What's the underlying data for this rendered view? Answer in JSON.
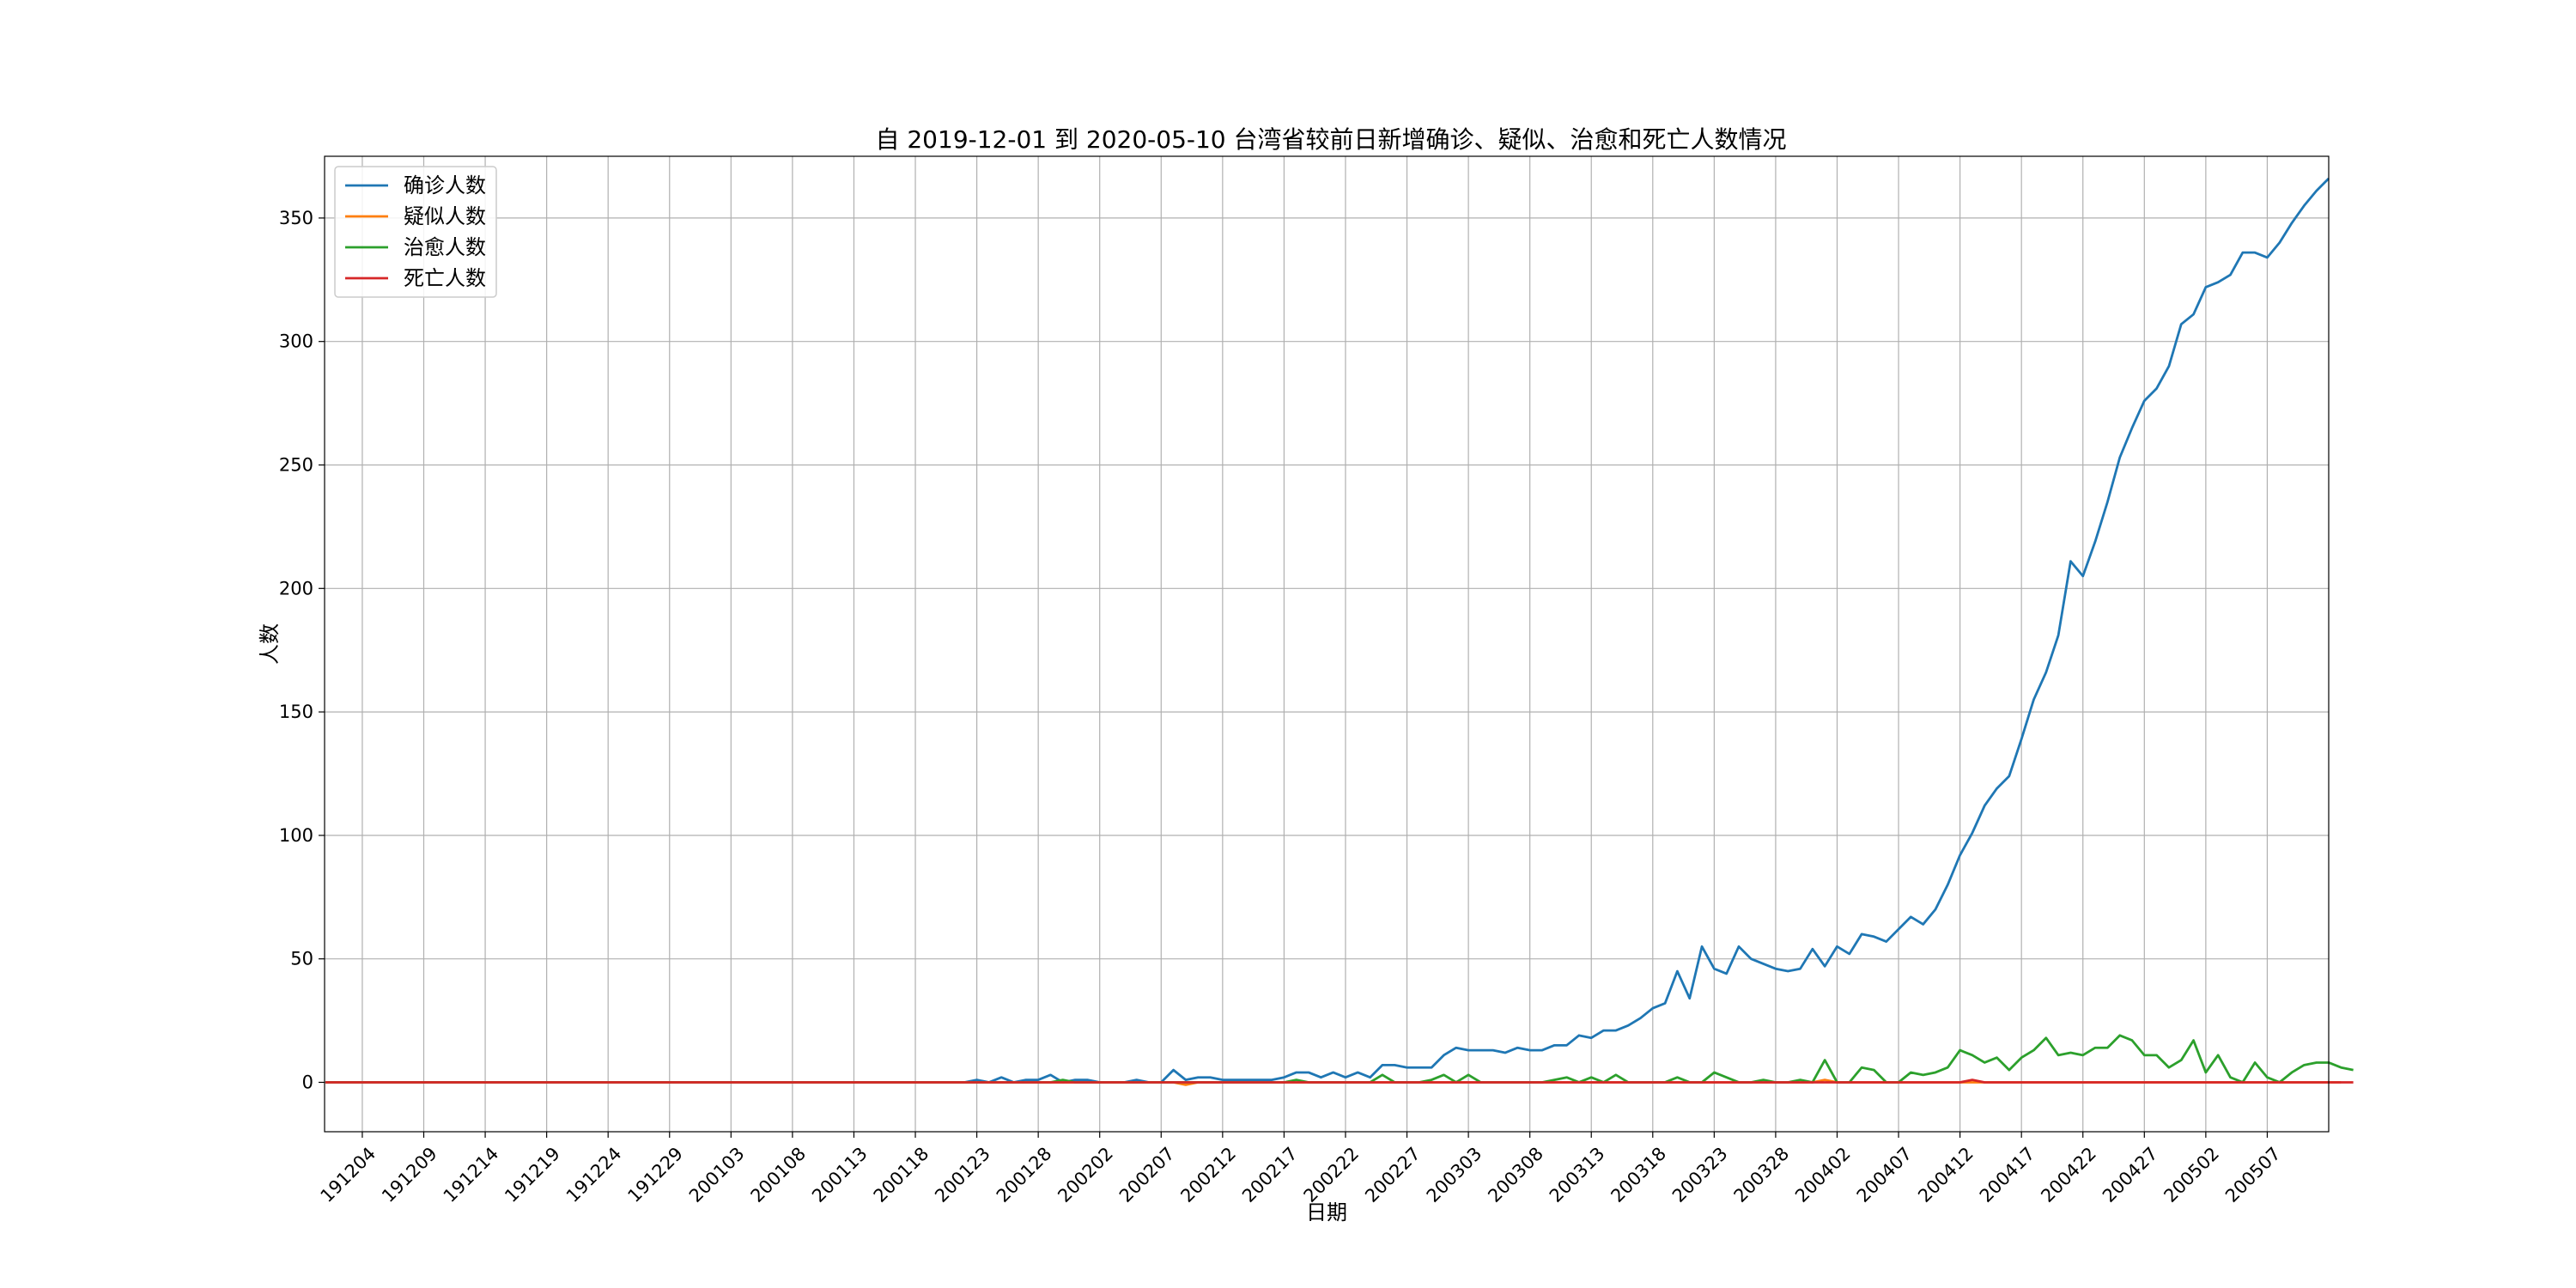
{
  "chart_data": {
    "type": "line",
    "title": "自 2019-12-01 到 2020-05-10 台湾省较前日新增确诊、疑似、治愈和死亡人数情况",
    "xlabel": "日期",
    "ylabel": "人数",
    "ylim": [
      -20,
      375
    ],
    "yticks": [
      0,
      50,
      100,
      150,
      200,
      250,
      300,
      350
    ],
    "ytick_labels": [
      "0",
      "50",
      "100",
      "150",
      "200",
      "250",
      "300",
      "350"
    ],
    "xticks": [
      "191204",
      "191209",
      "191214",
      "191219",
      "191224",
      "191229",
      "200103",
      "200108",
      "200113",
      "200118",
      "200123",
      "200128",
      "200202",
      "200207",
      "200212",
      "200217",
      "200222",
      "200227",
      "200303",
      "200308",
      "200313",
      "200318",
      "200323",
      "200328",
      "200402",
      "200407",
      "200412",
      "200417",
      "200422",
      "200427",
      "200502",
      "200507"
    ],
    "grid": true,
    "legend": "top-left",
    "series": [
      {
        "name": "确诊人数",
        "color": "#1f77b4",
        "values": [
          0,
          0,
          0,
          0,
          0,
          0,
          0,
          0,
          0,
          0,
          0,
          0,
          0,
          0,
          0,
          0,
          0,
          0,
          0,
          0,
          0,
          0,
          0,
          0,
          0,
          0,
          0,
          0,
          0,
          0,
          0,
          0,
          0,
          0,
          0,
          0,
          0,
          0,
          0,
          0,
          0,
          0,
          0,
          0,
          0,
          0,
          0,
          0,
          0,
          0,
          0,
          0,
          0,
          1,
          0,
          2,
          0,
          1,
          1,
          3,
          0,
          1,
          1,
          0,
          0,
          0,
          1,
          0,
          0,
          5,
          1,
          2,
          2,
          1,
          1,
          1,
          1,
          1,
          2,
          4,
          4,
          2,
          4,
          2,
          4,
          2,
          7,
          7,
          6,
          6,
          6,
          11,
          14,
          13,
          13,
          13,
          12,
          14,
          13,
          13,
          15,
          15,
          19,
          18,
          21,
          21,
          23,
          26,
          30,
          32,
          45,
          34,
          55,
          46,
          44,
          55,
          50,
          48,
          46,
          45,
          46,
          54,
          47,
          55,
          52,
          60,
          59,
          57,
          62,
          67,
          64,
          70,
          80,
          92,
          101,
          112,
          119,
          124,
          139,
          155,
          166,
          181,
          211,
          205,
          219,
          235,
          253,
          265,
          276,
          281,
          290,
          307,
          311,
          322,
          324,
          327,
          336,
          336,
          334,
          340,
          348,
          355,
          361,
          366
        ]
      },
      {
        "name": "疑似人数",
        "color": "#ff7f0e",
        "values": [
          0,
          0,
          0,
          0,
          0,
          0,
          0,
          0,
          0,
          0,
          0,
          0,
          0,
          0,
          0,
          0,
          0,
          0,
          0,
          0,
          0,
          0,
          0,
          0,
          0,
          0,
          0,
          0,
          0,
          0,
          0,
          0,
          0,
          0,
          0,
          0,
          0,
          0,
          0,
          0,
          0,
          0,
          0,
          0,
          0,
          0,
          0,
          0,
          0,
          0,
          0,
          0,
          0,
          0,
          0,
          0,
          0,
          0,
          0,
          0,
          0,
          0,
          0,
          0,
          0,
          0,
          0,
          0,
          0,
          0,
          -1,
          0,
          0,
          0,
          0,
          0,
          0,
          0,
          0,
          0,
          0,
          0,
          0,
          0,
          0,
          0,
          0,
          0,
          0,
          0,
          0,
          0,
          0,
          0,
          0,
          0,
          0,
          0,
          0,
          0,
          0,
          0,
          0,
          0,
          0,
          0,
          0,
          0,
          0,
          0,
          0,
          0,
          0,
          0,
          0,
          0,
          0,
          0,
          0,
          0,
          0,
          0,
          1,
          0,
          0,
          0,
          0,
          0,
          0,
          0,
          0,
          0,
          0,
          0,
          0,
          0,
          0,
          0,
          0,
          0,
          0,
          0,
          0,
          0,
          0,
          0,
          0,
          0,
          0,
          0,
          0,
          0,
          0,
          0,
          0,
          0,
          0,
          0,
          0,
          0,
          0,
          0,
          0,
          0,
          0
        ]
      },
      {
        "name": "治愈人数",
        "color": "#2ca02c",
        "values": [
          0,
          0,
          0,
          0,
          0,
          0,
          0,
          0,
          0,
          0,
          0,
          0,
          0,
          0,
          0,
          0,
          0,
          0,
          0,
          0,
          0,
          0,
          0,
          0,
          0,
          0,
          0,
          0,
          0,
          0,
          0,
          0,
          0,
          0,
          0,
          0,
          0,
          0,
          0,
          0,
          0,
          0,
          0,
          0,
          0,
          0,
          0,
          0,
          0,
          0,
          0,
          0,
          0,
          0,
          0,
          0,
          0,
          0,
          0,
          0,
          1,
          0,
          0,
          0,
          0,
          0,
          0,
          0,
          0,
          0,
          0,
          0,
          0,
          0,
          0,
          0,
          0,
          0,
          0,
          1,
          0,
          0,
          0,
          0,
          0,
          0,
          3,
          0,
          0,
          0,
          1,
          3,
          0,
          3,
          0,
          0,
          0,
          0,
          0,
          0,
          1,
          2,
          0,
          2,
          0,
          3,
          0,
          0,
          0,
          0,
          2,
          0,
          0,
          4,
          2,
          0,
          0,
          1,
          0,
          0,
          1,
          0,
          9,
          0,
          0,
          6,
          5,
          0,
          0,
          4,
          3,
          4,
          6,
          13,
          11,
          8,
          10,
          5,
          10,
          13,
          18,
          11,
          12,
          11,
          14,
          14,
          19,
          17,
          11,
          11,
          6,
          9,
          17,
          4,
          11,
          2,
          0,
          8,
          2,
          0,
          4,
          7,
          8,
          8,
          6,
          5
        ]
      },
      {
        "name": "死亡人数",
        "color": "#d62728",
        "values": [
          0,
          0,
          0,
          0,
          0,
          0,
          0,
          0,
          0,
          0,
          0,
          0,
          0,
          0,
          0,
          0,
          0,
          0,
          0,
          0,
          0,
          0,
          0,
          0,
          0,
          0,
          0,
          0,
          0,
          0,
          0,
          0,
          0,
          0,
          0,
          0,
          0,
          0,
          0,
          0,
          0,
          0,
          0,
          0,
          0,
          0,
          0,
          0,
          0,
          0,
          0,
          0,
          0,
          0,
          0,
          0,
          0,
          0,
          0,
          0,
          0,
          0,
          0,
          0,
          0,
          0,
          0,
          0,
          0,
          0,
          0,
          0,
          0,
          0,
          0,
          0,
          0,
          0,
          0,
          0,
          0,
          0,
          0,
          0,
          0,
          0,
          0,
          0,
          0,
          0,
          0,
          0,
          0,
          0,
          0,
          0,
          0,
          0,
          0,
          0,
          0,
          0,
          0,
          0,
          0,
          0,
          0,
          0,
          0,
          0,
          0,
          0,
          0,
          0,
          0,
          0,
          0,
          0,
          0,
          0,
          0,
          0,
          0,
          0,
          0,
          0,
          0,
          0,
          0,
          0,
          0,
          0,
          0,
          0,
          1,
          0,
          0,
          0,
          0,
          0,
          0,
          0,
          0,
          0,
          0,
          0,
          0,
          0,
          0,
          0,
          0,
          0,
          0,
          0,
          0,
          0,
          0,
          0,
          0,
          0,
          0,
          0,
          0,
          0,
          0,
          0
        ]
      }
    ]
  }
}
